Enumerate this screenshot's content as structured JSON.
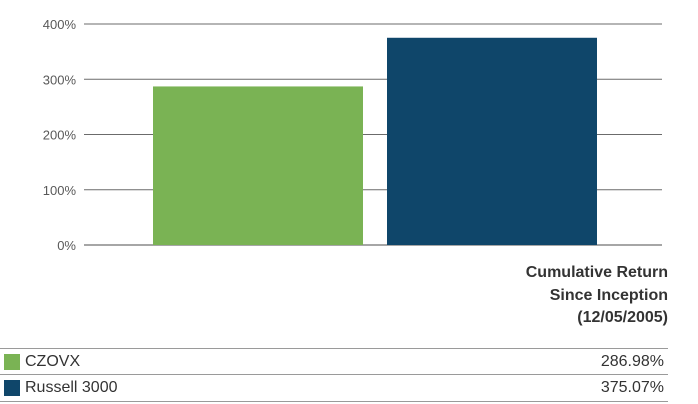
{
  "chart_data": {
    "type": "bar",
    "categories": [
      "CZOVX",
      "Russell 3000"
    ],
    "values": [
      286.98,
      375.07
    ],
    "colors": [
      "#7ab354",
      "#0f466a"
    ],
    "ylim": [
      0,
      400
    ],
    "yticks": [
      "0%",
      "100%",
      "200%",
      "300%",
      "400%"
    ],
    "grid": true,
    "header": [
      "Cumulative Return",
      "Since Inception",
      "(12/05/2005)"
    ],
    "legend": [
      {
        "name": "CZOVX",
        "value": "286.98%"
      },
      {
        "name": "Russell 3000",
        "value": "375.07%"
      }
    ]
  }
}
